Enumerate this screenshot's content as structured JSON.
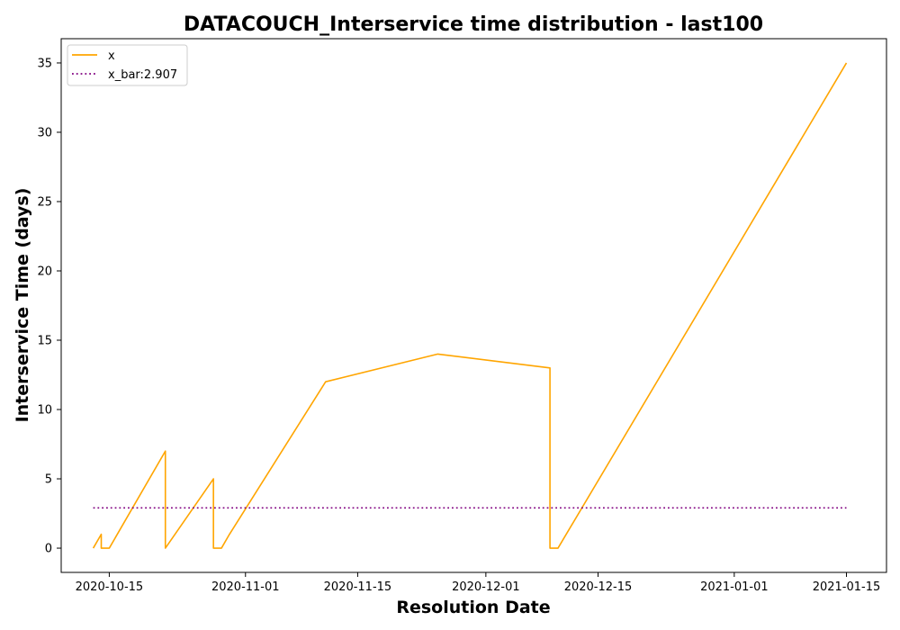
{
  "chart_data": {
    "type": "line",
    "title": "DATACOUCH_Interservice time distribution - last100",
    "xlabel": "Resolution Date",
    "ylabel": "Interservice Time (days)",
    "xlim": [
      "2020-10-09",
      "2021-01-20"
    ],
    "ylim": [
      -1.75,
      36.75
    ],
    "x_ticks": [
      "2020-10-15",
      "2020-11-01",
      "2020-11-15",
      "2020-12-01",
      "2020-12-15",
      "2021-01-01",
      "2021-01-15"
    ],
    "y_ticks": [
      0,
      5,
      10,
      15,
      20,
      25,
      30,
      35
    ],
    "grid": false,
    "legend_position": "upper-left",
    "series": [
      {
        "name": "x",
        "color": "#FFA500",
        "style": "solid",
        "x": [
          "2020-10-13",
          "2020-10-14",
          "2020-10-14",
          "2020-10-15",
          "2020-10-22",
          "2020-10-22",
          "2020-10-28",
          "2020-10-28",
          "2020-10-29",
          "2020-10-30",
          "2020-11-11",
          "2020-11-25",
          "2020-12-09",
          "2020-12-09",
          "2020-12-10",
          "2021-01-15"
        ],
        "y": [
          0,
          1,
          0,
          0,
          7,
          0,
          5,
          0,
          0,
          1,
          12,
          14,
          13,
          0,
          0,
          35
        ]
      },
      {
        "name": "x_bar:2.907",
        "color": "#800080",
        "style": "dotted",
        "x": [
          "2020-10-13",
          "2021-01-15"
        ],
        "y": [
          2.907,
          2.907
        ]
      }
    ]
  }
}
